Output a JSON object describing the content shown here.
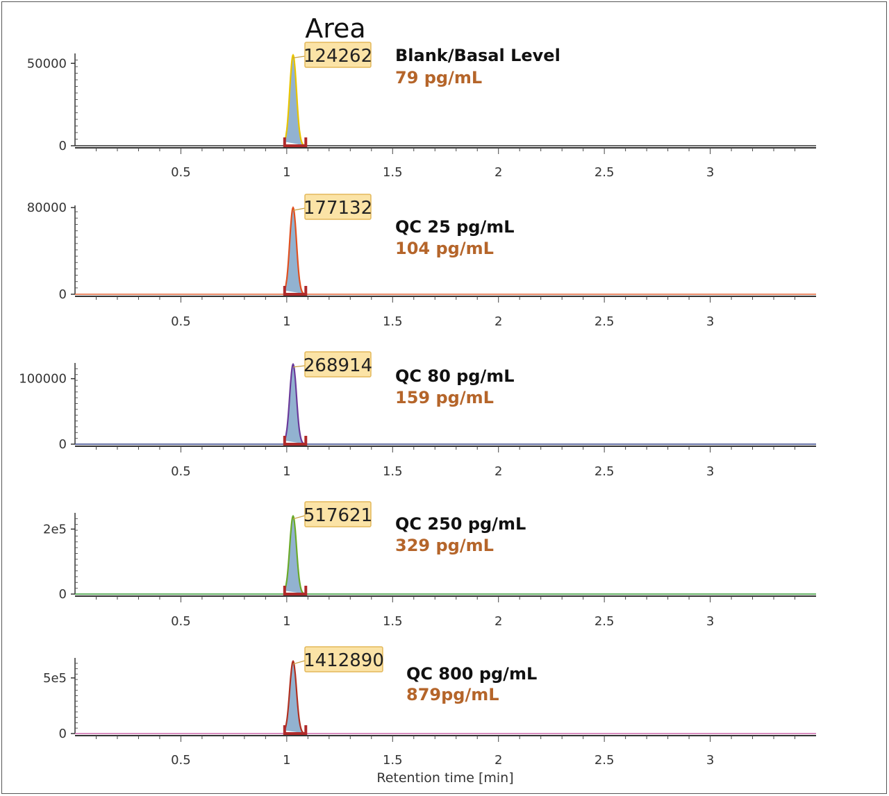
{
  "chart_data": {
    "type": "line",
    "title": "Area",
    "xlabel": "Retention time [min]",
    "xlim": [
      0,
      3.5
    ],
    "x_ticks": [
      0.5,
      1,
      1.5,
      2,
      2.5,
      3
    ],
    "x_tick_labels": [
      "0.5",
      "1",
      "1.5",
      "2",
      "2.5",
      "3"
    ],
    "peak": {
      "retention_time": 1.03,
      "start": 0.99,
      "end": 1.09
    },
    "panels": [
      {
        "sample": "Blank/Basal Level",
        "concentration": "79 pg/mL",
        "area": "124262",
        "line_color": "#333333",
        "peak_color": "#e8c400",
        "peak_height": 55000,
        "ylim": [
          0,
          56000
        ],
        "y_ticks": [
          0,
          50000
        ],
        "y_tick_labels": [
          "0",
          "50000"
        ]
      },
      {
        "sample": "QC 25 pg/mL",
        "concentration": "104 pg/mL",
        "area": "177132",
        "line_color": "#e06030",
        "peak_color": "#e05020",
        "peak_height": 80000,
        "ylim": [
          0,
          82000
        ],
        "y_ticks": [
          0,
          80000
        ],
        "y_tick_labels": [
          "0",
          "80000"
        ]
      },
      {
        "sample": "QC 80 pg/mL",
        "concentration": "159 pg/mL",
        "area": "268914",
        "line_color": "#334488",
        "peak_color": "#6a3a9a",
        "peak_height": 122000,
        "ylim": [
          0,
          124000
        ],
        "y_ticks": [
          0,
          100000
        ],
        "y_tick_labels": [
          "0",
          "100000"
        ]
      },
      {
        "sample": "QC 250 pg/mL",
        "concentration": "329 pg/mL",
        "area": "517621",
        "line_color": "#339933",
        "peak_color": "#6aaa2a",
        "peak_height": 240000,
        "ylim": [
          0,
          250000
        ],
        "y_ticks": [
          0,
          200000
        ],
        "y_tick_labels": [
          "0",
          "2e5"
        ]
      },
      {
        "sample": "QC 800 pg/mL",
        "concentration": "879pg/mL",
        "area": "1412890",
        "line_color": "#cc66aa",
        "peak_color": "#b03020",
        "peak_height": 650000,
        "ylim": [
          0,
          680000
        ],
        "y_ticks": [
          0,
          500000
        ],
        "y_tick_labels": [
          "0",
          "5e5"
        ]
      }
    ]
  },
  "colors": {
    "concentration_text": "#b5652a",
    "peak_fill": "#7fa4c8",
    "baseline_marker": "#b02a2a",
    "callout_fill": "#fbe3a6",
    "callout_border": "#e3b85a"
  }
}
